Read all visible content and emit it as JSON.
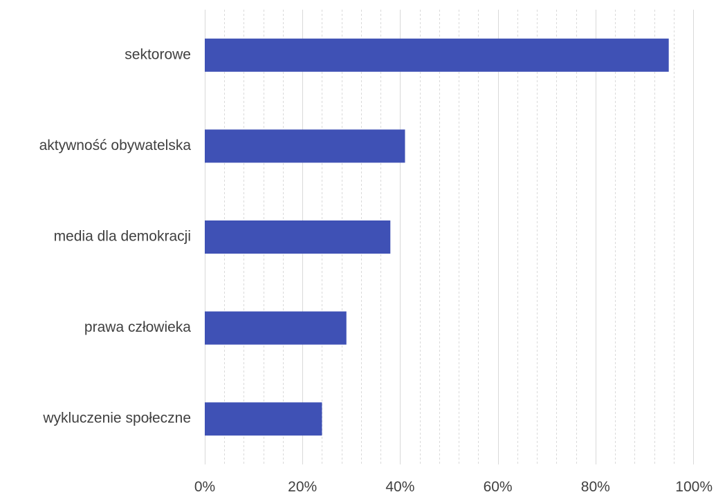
{
  "chart_data": {
    "type": "bar",
    "orientation": "horizontal",
    "categories": [
      "sektorowe",
      "aktywność obywatelska",
      "media dla demokracji",
      "prawa człowieka",
      "wykluczenie społeczne"
    ],
    "values": [
      0.95,
      0.41,
      0.38,
      0.29,
      0.24
    ],
    "xlim": [
      0,
      1
    ],
    "x_ticks": [
      "0%",
      "20%",
      "40%",
      "60%",
      "80%",
      "100%"
    ],
    "grid": "vertical major and minor",
    "legend": "none",
    "colors": {
      "bar": "#3f51b5",
      "grid_major": "#d9d9d9",
      "grid_minor": "#d9d9d9",
      "text": "#404040"
    }
  }
}
